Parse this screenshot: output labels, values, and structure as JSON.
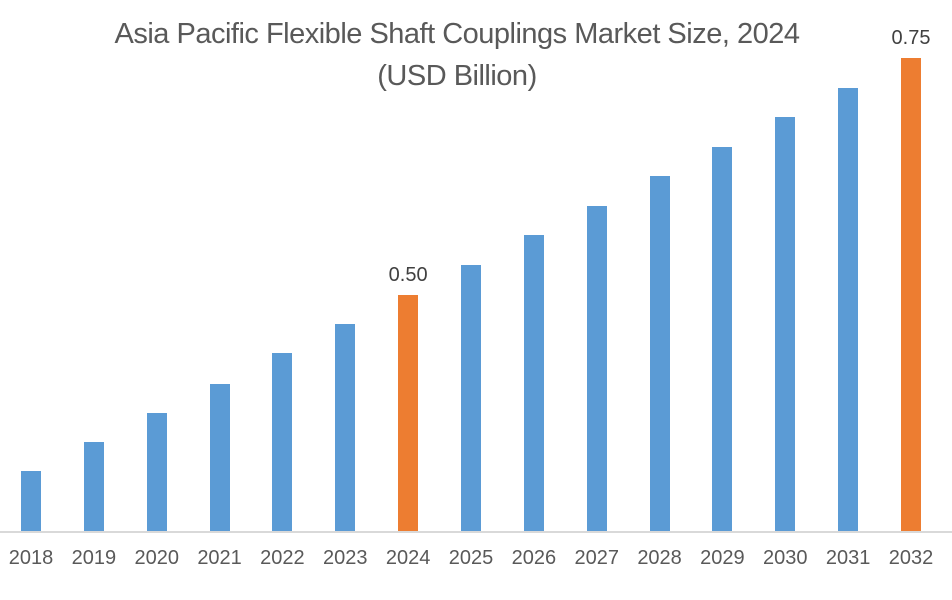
{
  "chart_data": {
    "type": "bar",
    "title": "Asia Pacific Flexible Shaft Couplings Market Size, 2024",
    "subtitle": "(USD Billion)",
    "xlabel": "",
    "ylabel": "",
    "categories": [
      "2018",
      "2019",
      "2020",
      "2021",
      "2022",
      "2023",
      "2024",
      "2025",
      "2026",
      "2027",
      "2028",
      "2029",
      "2030",
      "2031",
      "2032"
    ],
    "values": [
      0.313,
      0.344,
      0.375,
      0.406,
      0.438,
      0.469,
      0.5,
      0.531,
      0.563,
      0.594,
      0.625,
      0.656,
      0.688,
      0.719,
      0.75
    ],
    "data_labels": {
      "6": "0.50",
      "14": "0.75"
    },
    "highlight_indices": [
      6,
      14
    ],
    "bar_color": "#5B9BD5",
    "highlight_color": "#ED7D31",
    "axis_line_color": "#D9D9D9",
    "title_color": "#595959",
    "tick_label_color": "#595959",
    "data_label_color": "#404040",
    "ylim": [
      0.25,
      0.8
    ],
    "grid": false,
    "legend": false,
    "y_axis_visible": false
  }
}
